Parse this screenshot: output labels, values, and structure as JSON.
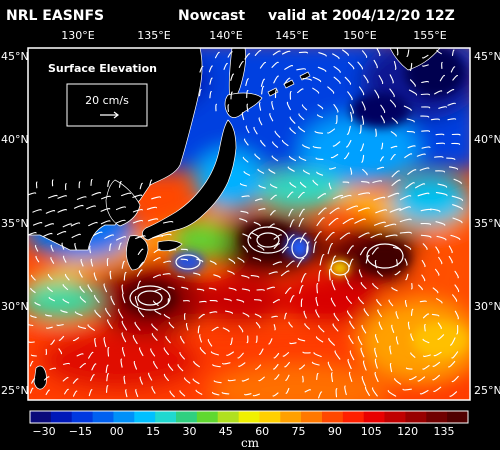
{
  "header": {
    "source": "NRL EASNFS",
    "product": "Nowcast",
    "valid": "valid at 2004/12/20 12Z"
  },
  "legend_box": {
    "title": "Surface Elevation",
    "scale_label": "20 cm/s"
  },
  "lon_ticks": [
    "130°E",
    "135°E",
    "140°E",
    "145°E",
    "150°E",
    "155°E"
  ],
  "lat_ticks": [
    "45°N",
    "40°N",
    "35°N",
    "30°N",
    "25°N"
  ],
  "colorbar": {
    "unit": "cm",
    "tick_labels": [
      "−30",
      "−15",
      "00",
      "15",
      "30",
      "45",
      "60",
      "75",
      "90",
      "105",
      "120",
      "135"
    ],
    "colors": [
      "#0a0a7a",
      "#0018b8",
      "#0038e0",
      "#0060f0",
      "#0090f8",
      "#00c0ff",
      "#20d8d0",
      "#30d080",
      "#60d830",
      "#b0e020",
      "#f0f000",
      "#ffd000",
      "#ffa000",
      "#ff7800",
      "#ff4800",
      "#ff2000",
      "#e80000",
      "#c00000",
      "#980000",
      "#700000",
      "#500000"
    ]
  },
  "colors": {
    "land": "#000000",
    "text": "#ffffff",
    "vectors": "#ffffff"
  }
}
